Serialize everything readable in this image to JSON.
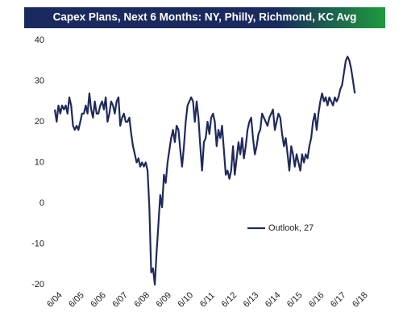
{
  "chart_data": {
    "type": "line",
    "title": "Capex Plans, Next 6 Months: NY, Philly, Richmond, KC Avg",
    "categories": [
      "6/04",
      null,
      null,
      null,
      null,
      null,
      null,
      null,
      null,
      null,
      null,
      null,
      "6/05",
      null,
      null,
      null,
      null,
      null,
      null,
      null,
      null,
      null,
      null,
      null,
      "6/06",
      null,
      null,
      null,
      null,
      null,
      null,
      null,
      null,
      null,
      null,
      null,
      "6/07",
      null,
      null,
      null,
      null,
      null,
      null,
      null,
      null,
      null,
      null,
      null,
      "6/08",
      null,
      null,
      null,
      null,
      null,
      null,
      null,
      null,
      null,
      null,
      null,
      "6/09",
      null,
      null,
      null,
      null,
      null,
      null,
      null,
      null,
      null,
      null,
      null,
      "6/10",
      null,
      null,
      null,
      null,
      null,
      null,
      null,
      null,
      null,
      null,
      null,
      "6/11",
      null,
      null,
      null,
      null,
      null,
      null,
      null,
      null,
      null,
      null,
      null,
      "6/12",
      null,
      null,
      null,
      null,
      null,
      null,
      null,
      null,
      null,
      null,
      null,
      "6/13",
      null,
      null,
      null,
      null,
      null,
      null,
      null,
      null,
      null,
      null,
      null,
      "6/14",
      null,
      null,
      null,
      null,
      null,
      null,
      null,
      null,
      null,
      null,
      null,
      "6/15",
      null,
      null,
      null,
      null,
      null,
      null,
      null,
      null,
      null,
      null,
      null,
      "6/16",
      null,
      null,
      null,
      null,
      null,
      null,
      null,
      null,
      null,
      null,
      null,
      "6/17",
      null,
      null,
      null,
      null,
      null,
      null,
      null,
      null,
      null,
      null,
      null,
      "6/18"
    ],
    "series": [
      {
        "name": "Outlook, 27",
        "color": "#1f2a5c",
        "values": [
          23,
          20,
          24,
          22,
          24,
          23,
          24,
          22,
          26,
          24,
          19,
          18,
          19,
          18,
          20,
          22,
          22,
          24,
          22,
          27,
          23,
          21,
          25,
          22,
          22,
          24,
          25,
          23,
          26,
          20,
          22,
          25,
          24,
          22,
          25,
          26,
          19,
          21,
          22,
          20,
          20,
          21,
          17,
          14,
          12,
          10,
          11,
          9,
          10,
          9,
          10,
          8,
          -1,
          -17,
          -16,
          -20,
          -12,
          -5,
          2,
          -1,
          7,
          5,
          10,
          13,
          16,
          18,
          15,
          19,
          18,
          13,
          9,
          14,
          20,
          24,
          25,
          26,
          25,
          20,
          25,
          21,
          14,
          8,
          15,
          16,
          20,
          17,
          21,
          22,
          20,
          14,
          18,
          16,
          19,
          13,
          7,
          8,
          6,
          8,
          14,
          7,
          11,
          15,
          12,
          16,
          11,
          14,
          18,
          20,
          21,
          16,
          12,
          14,
          17,
          18,
          22,
          21,
          20,
          19,
          21,
          22,
          23,
          18,
          20,
          22,
          21,
          17,
          14,
          16,
          12,
          8,
          14,
          12,
          9,
          12,
          10,
          8,
          12,
          10,
          12,
          11,
          14,
          16,
          20,
          22,
          18,
          22,
          25,
          27,
          25,
          26,
          24,
          26,
          25,
          24,
          26,
          25,
          26,
          28,
          29,
          32,
          35,
          36,
          35,
          33,
          30,
          27,
          null,
          null,
          null
        ]
      }
    ],
    "ylim": [
      -20,
      40
    ],
    "yticks": [
      -20,
      -10,
      0,
      10,
      20,
      30,
      40
    ],
    "legend": "lower-right"
  }
}
